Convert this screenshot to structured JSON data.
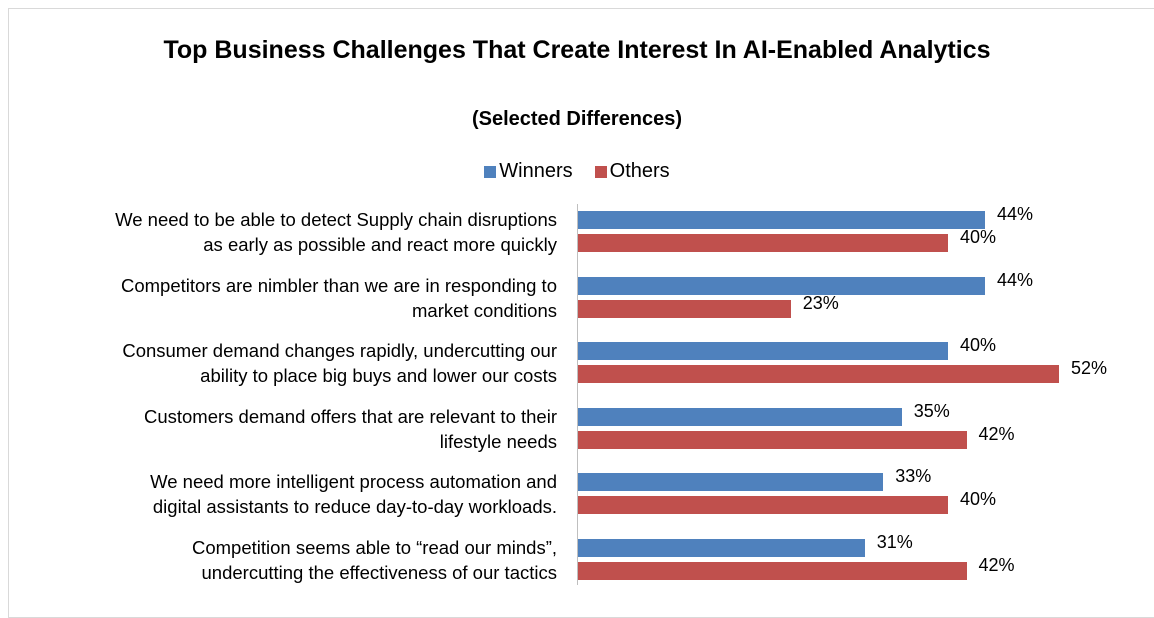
{
  "chart_data": {
    "type": "bar",
    "orientation": "horizontal",
    "title": "Top Business Challenges That Create Interest In AI-Enabled Analytics",
    "subtitle": "(Selected Differences)",
    "categories": [
      "We need to be able to detect Supply chain disruptions\nas early as possible and react more quickly",
      "Competitors are nimbler than we are in responding to\nmarket conditions",
      "Consumer demand changes rapidly, undercutting our\nability to place big buys and lower our costs",
      "Customers demand offers that are relevant to their\nlifestyle needs",
      "We need more intelligent process automation and\ndigital assistants to reduce day-to-day workloads.",
      "Competition seems able to “read our minds”,\nundercutting the effectiveness of our tactics"
    ],
    "series": [
      {
        "name": "Winners",
        "color": "#4f81bd",
        "values": [
          44,
          44,
          40,
          35,
          33,
          31
        ],
        "value_labels": [
          "44%",
          "44%",
          "40%",
          "35%",
          "33%",
          "31%"
        ]
      },
      {
        "name": "Others",
        "color": "#c0504d",
        "values": [
          40,
          23,
          52,
          42,
          40,
          42
        ],
        "value_labels": [
          "40%",
          "23%",
          "52%",
          "42%",
          "40%",
          "42%"
        ]
      }
    ],
    "legend": "top"
  }
}
